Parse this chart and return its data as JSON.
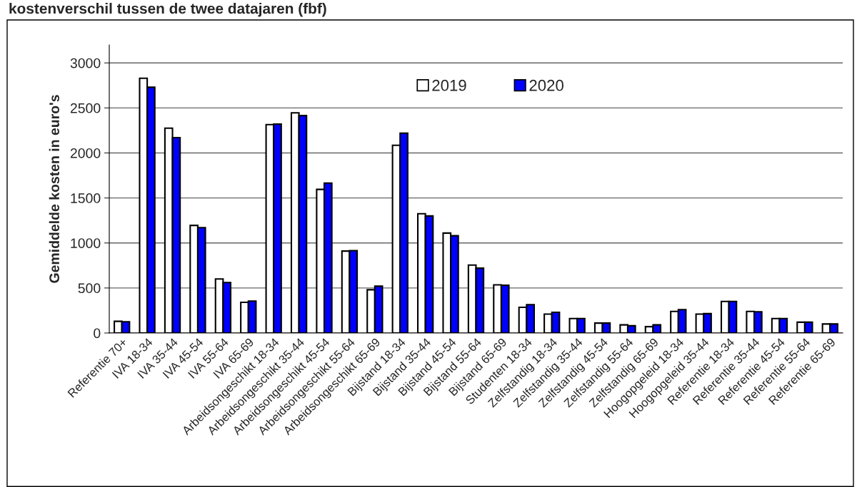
{
  "chart_data": {
    "type": "bar",
    "title": "kostenverschil tussen de twee datajaren (fbf)",
    "ylabel": "Gemiddelde kosten in euro's",
    "categories": [
      "Referentie 70+",
      "IVA 18-34",
      "IVA 35-44",
      "IVA 45-54",
      "IVA 55-64",
      "IVA 65-69",
      "Arbeidsongeschikt 18-34",
      "Arbeidsongeschikt 35-44",
      "Arbeidsongeschikt 45-54",
      "Arbeidsongeschikt 55-64",
      "Arbeidsongeschikt 65-69",
      "Bijstand 18-34",
      "Bijstand 35-44",
      "Bijstand 45-54",
      "Bijstand 55-64",
      "Bijstand 65-69",
      "Studenten 18-34",
      "Zelfstandig 18-34",
      "Zelfstandig 35-44",
      "Zelfstandig 45-54",
      "Zelfstandig 55-64",
      "Zelfstandig 65-69",
      "Hoogopgeleid 18-34",
      "Hoogopgeleid 35-44",
      "Referentie 18-34",
      "Referentie 35-44",
      "Referentie 45-54",
      "Referentie 55-64",
      "Referentie 65-69"
    ],
    "series": [
      {
        "name": "2019",
        "color": "#ffffff",
        "values": [
          130,
          2830,
          2275,
          1195,
          600,
          340,
          2315,
          2445,
          1595,
          910,
          480,
          2085,
          1325,
          1110,
          755,
          535,
          285,
          210,
          160,
          110,
          90,
          70,
          240,
          210,
          350,
          240,
          160,
          120,
          100
        ]
      },
      {
        "name": "2020",
        "color": "#0000ff",
        "values": [
          125,
          2730,
          2170,
          1170,
          560,
          355,
          2320,
          2415,
          1665,
          915,
          520,
          2220,
          1300,
          1080,
          720,
          530,
          315,
          230,
          160,
          110,
          80,
          90,
          260,
          215,
          350,
          235,
          160,
          120,
          100
        ]
      }
    ],
    "ylim": [
      0,
      3200
    ],
    "yticks": [
      0,
      500,
      1000,
      1500,
      2000,
      2500,
      3000
    ],
    "grid": "y",
    "legend": "top"
  }
}
